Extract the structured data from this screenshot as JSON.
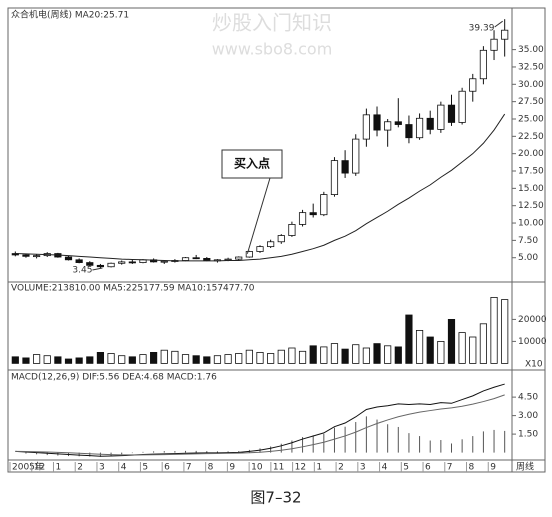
{
  "chart_data": {
    "type": "candlestick",
    "title": "众合机电(周线) MA20:25.71",
    "ohlc": [
      [
        5.6,
        5.9,
        5.2,
        5.4
      ],
      [
        5.4,
        5.6,
        5.0,
        5.2
      ],
      [
        5.2,
        5.5,
        4.9,
        5.3
      ],
      [
        5.3,
        5.8,
        5.1,
        5.6
      ],
      [
        5.6,
        5.7,
        5.0,
        5.1
      ],
      [
        5.1,
        5.3,
        4.6,
        4.7
      ],
      [
        4.7,
        4.9,
        4.2,
        4.3
      ],
      [
        4.3,
        4.5,
        3.8,
        3.9
      ],
      [
        3.9,
        4.1,
        3.45,
        3.7
      ],
      [
        3.7,
        4.3,
        3.6,
        4.2
      ],
      [
        4.2,
        4.6,
        4.0,
        4.4
      ],
      [
        4.4,
        4.7,
        4.1,
        4.3
      ],
      [
        4.3,
        4.8,
        4.2,
        4.7
      ],
      [
        4.7,
        4.9,
        4.3,
        4.4
      ],
      [
        4.4,
        4.6,
        4.1,
        4.5
      ],
      [
        4.5,
        4.8,
        4.3,
        4.6
      ],
      [
        4.6,
        5.1,
        4.5,
        5.0
      ],
      [
        5.0,
        5.4,
        4.8,
        4.9
      ],
      [
        4.9,
        5.1,
        4.5,
        4.6
      ],
      [
        4.6,
        4.8,
        4.3,
        4.7
      ],
      [
        4.7,
        5.0,
        4.5,
        4.8
      ],
      [
        4.8,
        5.2,
        4.6,
        5.1
      ],
      [
        5.1,
        6.0,
        5.0,
        5.9
      ],
      [
        5.9,
        6.8,
        5.7,
        6.6
      ],
      [
        6.6,
        7.6,
        6.4,
        7.3
      ],
      [
        7.3,
        8.4,
        7.0,
        8.2
      ],
      [
        8.2,
        10.2,
        8.0,
        9.8
      ],
      [
        9.8,
        11.9,
        9.5,
        11.5
      ],
      [
        11.5,
        12.8,
        10.8,
        11.2
      ],
      [
        11.2,
        14.5,
        11.0,
        14.1
      ],
      [
        14.1,
        19.5,
        13.8,
        19.0
      ],
      [
        19.0,
        20.5,
        16.5,
        17.2
      ],
      [
        17.2,
        22.8,
        16.8,
        22.1
      ],
      [
        22.1,
        26.5,
        21.0,
        25.6
      ],
      [
        25.6,
        26.8,
        22.5,
        23.4
      ],
      [
        23.4,
        25.0,
        21.0,
        24.6
      ],
      [
        24.6,
        28.0,
        23.8,
        24.2
      ],
      [
        24.2,
        25.5,
        21.5,
        22.3
      ],
      [
        22.3,
        25.8,
        22.0,
        25.1
      ],
      [
        25.1,
        26.2,
        22.8,
        23.5
      ],
      [
        23.5,
        27.5,
        23.0,
        27.0
      ],
      [
        27.0,
        28.5,
        24.0,
        24.5
      ],
      [
        24.5,
        29.5,
        24.2,
        29.0
      ],
      [
        29.0,
        31.5,
        27.5,
        30.8
      ],
      [
        30.8,
        35.5,
        30.0,
        34.9
      ],
      [
        34.9,
        37.8,
        33.5,
        36.5
      ],
      [
        36.5,
        39.39,
        34.0,
        37.8
      ]
    ],
    "ma20": [
      5.6,
      5.55,
      5.5,
      5.45,
      5.4,
      5.3,
      5.2,
      5.1,
      5.0,
      4.9,
      4.8,
      4.75,
      4.7,
      4.65,
      4.6,
      4.55,
      4.55,
      4.55,
      4.55,
      4.55,
      4.6,
      4.6,
      4.7,
      4.8,
      5.0,
      5.2,
      5.5,
      5.9,
      6.3,
      6.8,
      7.5,
      8.1,
      8.9,
      9.9,
      10.8,
      11.7,
      12.7,
      13.6,
      14.6,
      15.5,
      16.6,
      17.6,
      18.8,
      20.0,
      21.5,
      23.4,
      25.71
    ],
    "ylim": [
      1.5,
      41
    ],
    "yticks": [
      {
        "value": 5,
        "label": "5.00"
      },
      {
        "value": 7.5,
        "label": "7.50"
      },
      {
        "value": 10,
        "label": "10.00"
      },
      {
        "value": 12.5,
        "label": "12.50"
      },
      {
        "value": 15,
        "label": "15.00"
      },
      {
        "value": 17.5,
        "label": "17.50"
      },
      {
        "value": 20,
        "label": "20.00"
      },
      {
        "value": 22.5,
        "label": "22.50"
      },
      {
        "value": 25,
        "label": "25.00"
      },
      {
        "value": 27.5,
        "label": "27.50"
      },
      {
        "value": 30,
        "label": "30.00"
      },
      {
        "value": 32.5,
        "label": "32.50"
      },
      {
        "value": 35,
        "label": "35.00"
      }
    ],
    "annotations": {
      "high": "39.39",
      "low": "3.45",
      "buy": "买入点"
    },
    "volume": {
      "title": "VOLUME:213810.00 MA5:225177.59 MA10:157477.70",
      "values": [
        3000,
        2500,
        4000,
        3500,
        3000,
        2000,
        2500,
        3000,
        5000,
        4500,
        3500,
        3000,
        4000,
        5000,
        6000,
        5500,
        4000,
        3500,
        3000,
        3500,
        4000,
        4500,
        6000,
        5000,
        4500,
        6000,
        7000,
        5500,
        8000,
        7500,
        9000,
        6500,
        8500,
        7000,
        9000,
        8000,
        7500,
        22000,
        15000,
        12000,
        10000,
        20000,
        14000,
        12000,
        18000,
        30000,
        29000
      ],
      "ylim": [
        -3000,
        37000
      ],
      "yticks": [
        10000,
        20000
      ],
      "unit": "X10"
    },
    "macd": {
      "title": "MACD(12,26,9) DIF:5.56 DEA:4.68 MACD:1.76",
      "dif": [
        0.1,
        0.05,
        0,
        -0.05,
        -0.1,
        -0.15,
        -0.2,
        -0.25,
        -0.3,
        -0.28,
        -0.25,
        -0.2,
        -0.15,
        -0.12,
        -0.1,
        -0.08,
        -0.05,
        -0.03,
        -0.02,
        -0.02,
        0,
        0.02,
        0.1,
        0.2,
        0.35,
        0.55,
        0.8,
        1.1,
        1.35,
        1.6,
        2.1,
        2.4,
        2.9,
        3.5,
        3.7,
        3.8,
        3.95,
        3.9,
        3.95,
        3.9,
        4.05,
        4.0,
        4.3,
        4.6,
        5.0,
        5.3,
        5.56
      ],
      "dea": [
        0.1,
        0.09,
        0.07,
        0.05,
        0.02,
        -0.01,
        -0.05,
        -0.09,
        -0.13,
        -0.16,
        -0.18,
        -0.18,
        -0.18,
        -0.17,
        -0.16,
        -0.14,
        -0.12,
        -0.1,
        -0.08,
        -0.07,
        -0.05,
        -0.04,
        -0.01,
        0.03,
        0.1,
        0.19,
        0.31,
        0.47,
        0.65,
        0.84,
        1.09,
        1.35,
        1.66,
        2.03,
        2.36,
        2.65,
        2.91,
        3.11,
        3.28,
        3.41,
        3.54,
        3.63,
        3.76,
        3.93,
        4.14,
        4.38,
        4.68
      ],
      "hist": [
        0,
        -0.08,
        -0.14,
        -0.2,
        -0.24,
        -0.28,
        -0.3,
        -0.32,
        -0.34,
        -0.24,
        -0.14,
        -0.04,
        0.06,
        0.1,
        0.12,
        0.12,
        0.14,
        0.14,
        0.12,
        0.1,
        0.1,
        0.12,
        0.22,
        0.34,
        0.5,
        0.72,
        0.98,
        1.26,
        1.4,
        1.52,
        2.02,
        2.1,
        2.48,
        2.94,
        2.68,
        2.3,
        2.08,
        1.58,
        1.34,
        0.98,
        1.02,
        0.74,
        1.08,
        1.34,
        1.72,
        1.84,
        1.76
      ],
      "ylim": [
        -0.6,
        6.7
      ],
      "yticks": [
        {
          "value": 1.5,
          "label": "1.50"
        },
        {
          "value": 3,
          "label": "3.00"
        },
        {
          "value": 4.5,
          "label": "4.50"
        }
      ]
    },
    "x_labels": [
      "2005年",
      "12",
      "1",
      "2",
      "3",
      "4",
      "5",
      "6",
      "7",
      "8",
      "9",
      "10",
      "11",
      "12",
      "1",
      "2",
      "3",
      "4",
      "5",
      "6",
      "7",
      "8",
      "9"
    ],
    "period": "周线"
  },
  "watermark": [
    "炒股入门知识",
    "www.sbo8.com"
  ],
  "caption": "图7–32"
}
